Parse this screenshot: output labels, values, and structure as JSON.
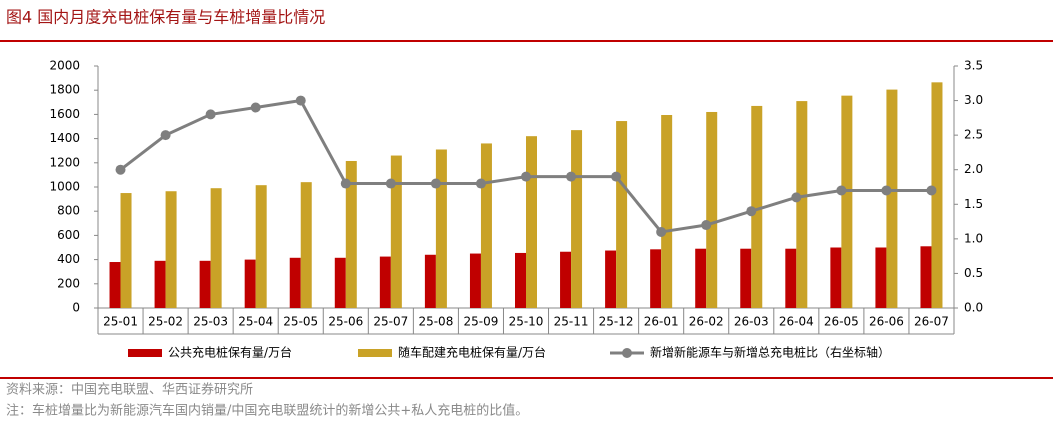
{
  "chart_data": {
    "type": "bar",
    "title": "图4 国内月度充电桩保有量与车桩增量比情况",
    "categories": [
      "25-01",
      "25-02",
      "25-03",
      "25-04",
      "25-05",
      "25-06",
      "25-07",
      "25-08",
      "25-09",
      "25-10",
      "25-11",
      "25-12",
      "26-01",
      "26-02",
      "26-03",
      "26-04",
      "26-05",
      "26-06",
      "26-07"
    ],
    "series": [
      {
        "name": "公共充电桩保有量/万台",
        "color": "#c00000",
        "values": [
          380,
          390,
          390,
          400,
          415,
          415,
          425,
          440,
          450,
          455,
          465,
          475,
          485,
          490,
          490,
          490,
          500,
          500,
          510
        ]
      },
      {
        "name": "随车配建充电桩保有量/万台",
        "color": "#c9a227",
        "values": [
          950,
          965,
          990,
          1015,
          1040,
          1215,
          1260,
          1310,
          1360,
          1420,
          1470,
          1545,
          1595,
          1620,
          1670,
          1710,
          1755,
          1805,
          1865
        ]
      },
      {
        "name": "新增新能源车与新增总充电桩比（右坐标轴）",
        "color": "#7f7f7f",
        "type": "line",
        "axis": "y2",
        "values": [
          2.0,
          2.5,
          2.8,
          2.9,
          3.0,
          1.8,
          1.8,
          1.8,
          1.8,
          1.9,
          1.9,
          1.9,
          1.1,
          1.2,
          1.4,
          1.6,
          1.7,
          1.7,
          1.7
        ]
      }
    ],
    "ylim": [
      0,
      2000
    ],
    "yticks": [
      0,
      200,
      400,
      600,
      800,
      1000,
      1200,
      1400,
      1600,
      1800,
      2000
    ],
    "y2lim": [
      0,
      3.5
    ],
    "y2ticks": [
      {
        "value": 0,
        "label": "0.0"
      },
      0.5,
      {
        "value": 1,
        "label": "1.0"
      },
      1.5,
      {
        "value": 2,
        "label": "2.0"
      },
      2.5,
      {
        "value": 3,
        "label": "3.0"
      },
      3.5
    ],
    "source": "资料来源：中国充电联盟、华西证券研究所",
    "note": "注：车桩增量比为新能源汽车国内销量/中国充电联盟统计的新增公共+私人充电桩的比值。"
  }
}
